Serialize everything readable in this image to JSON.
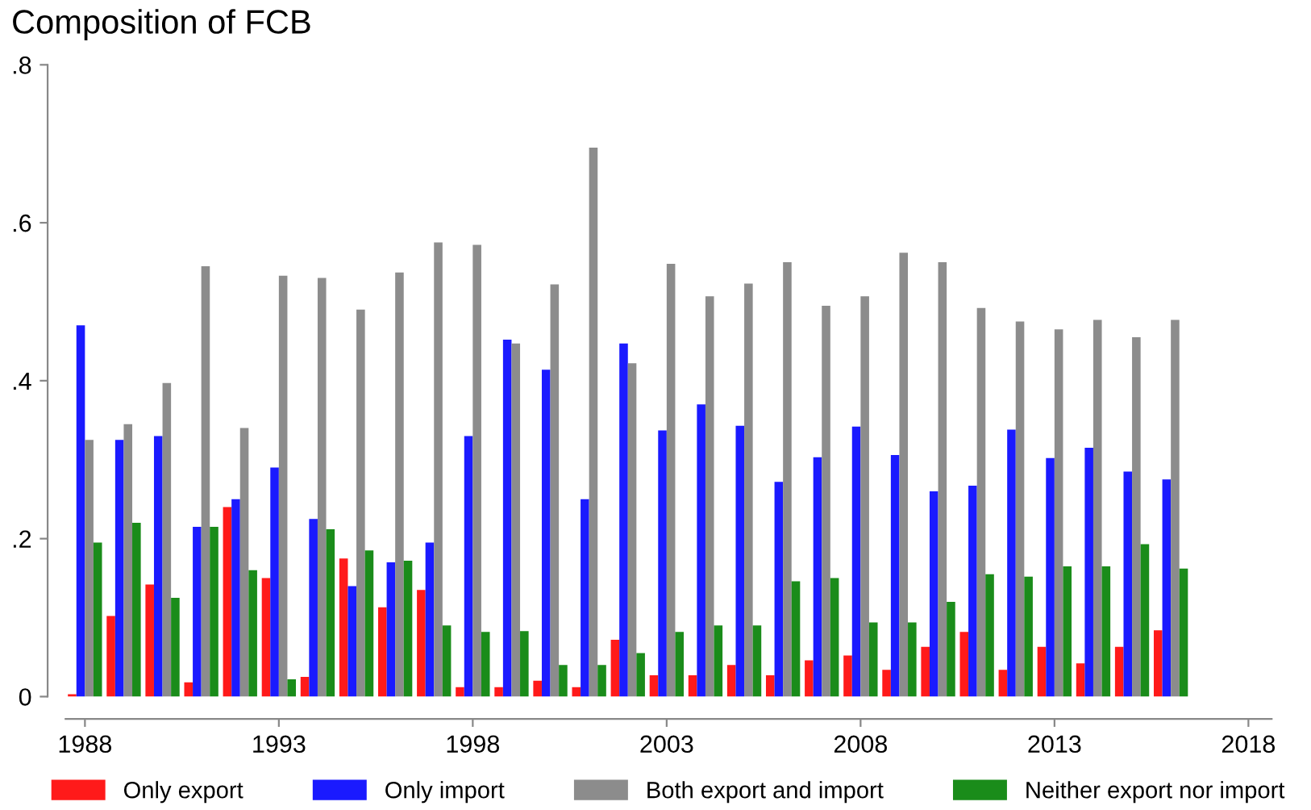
{
  "chart_data": {
    "type": "bar",
    "title": "Composition of FCB",
    "x": [
      1988,
      1989,
      1990,
      1991,
      1992,
      1993,
      1994,
      1995,
      1996,
      1997,
      1998,
      1999,
      2000,
      2001,
      2002,
      2003,
      2004,
      2005,
      2006,
      2007,
      2008,
      2009,
      2010,
      2011,
      2012,
      2013,
      2014,
      2015,
      2016
    ],
    "series": [
      {
        "name": "Only export",
        "color": "#ff1a1a",
        "values": [
          0.003,
          0.102,
          0.142,
          0.018,
          0.24,
          0.15,
          0.025,
          0.175,
          0.113,
          0.135,
          0.012,
          0.012,
          0.02,
          0.012,
          0.072,
          0.027,
          0.027,
          0.04,
          0.027,
          0.046,
          0.052,
          0.034,
          0.063,
          0.082,
          0.034,
          0.063,
          0.042,
          0.063,
          0.084
        ]
      },
      {
        "name": "Only import",
        "color": "#1a1aff",
        "values": [
          0.47,
          0.325,
          0.33,
          0.215,
          0.25,
          0.29,
          0.225,
          0.14,
          0.17,
          0.195,
          0.33,
          0.452,
          0.414,
          0.25,
          0.447,
          0.337,
          0.37,
          0.343,
          0.272,
          0.303,
          0.342,
          0.306,
          0.26,
          0.267,
          0.338,
          0.302,
          0.315,
          0.285,
          0.275
        ]
      },
      {
        "name": "Both export and import",
        "color": "#8c8c8c",
        "values": [
          0.325,
          0.345,
          0.397,
          0.545,
          0.34,
          0.533,
          0.53,
          0.49,
          0.537,
          0.575,
          0.572,
          0.447,
          0.522,
          0.695,
          0.422,
          0.548,
          0.507,
          0.523,
          0.55,
          0.495,
          0.507,
          0.562,
          0.55,
          0.492,
          0.475,
          0.465,
          0.477,
          0.455,
          0.477
        ]
      },
      {
        "name": "Neither export nor import",
        "color": "#1a8c1a",
        "values": [
          0.195,
          0.22,
          0.125,
          0.215,
          0.16,
          0.022,
          0.212,
          0.185,
          0.172,
          0.09,
          0.082,
          0.083,
          0.04,
          0.04,
          0.055,
          0.082,
          0.09,
          0.09,
          0.146,
          0.15,
          0.094,
          0.094,
          0.12,
          0.155,
          0.152,
          0.165,
          0.165,
          0.193,
          0.162
        ]
      }
    ],
    "xlim": [
      1987.5,
      2018.6
    ],
    "xticks": [
      1988,
      1993,
      1998,
      2003,
      2008,
      2013,
      2018
    ],
    "ylim": [
      0,
      0.8
    ],
    "yticks": [
      {
        "value": 0,
        "label": "0"
      },
      {
        "value": 0.2,
        "label": ".2"
      },
      {
        "value": 0.4,
        "label": ".4"
      },
      {
        "value": 0.6,
        "label": ".6"
      },
      {
        "value": 0.8,
        "label": ".8"
      }
    ],
    "grid": false,
    "legend": "bottom"
  }
}
